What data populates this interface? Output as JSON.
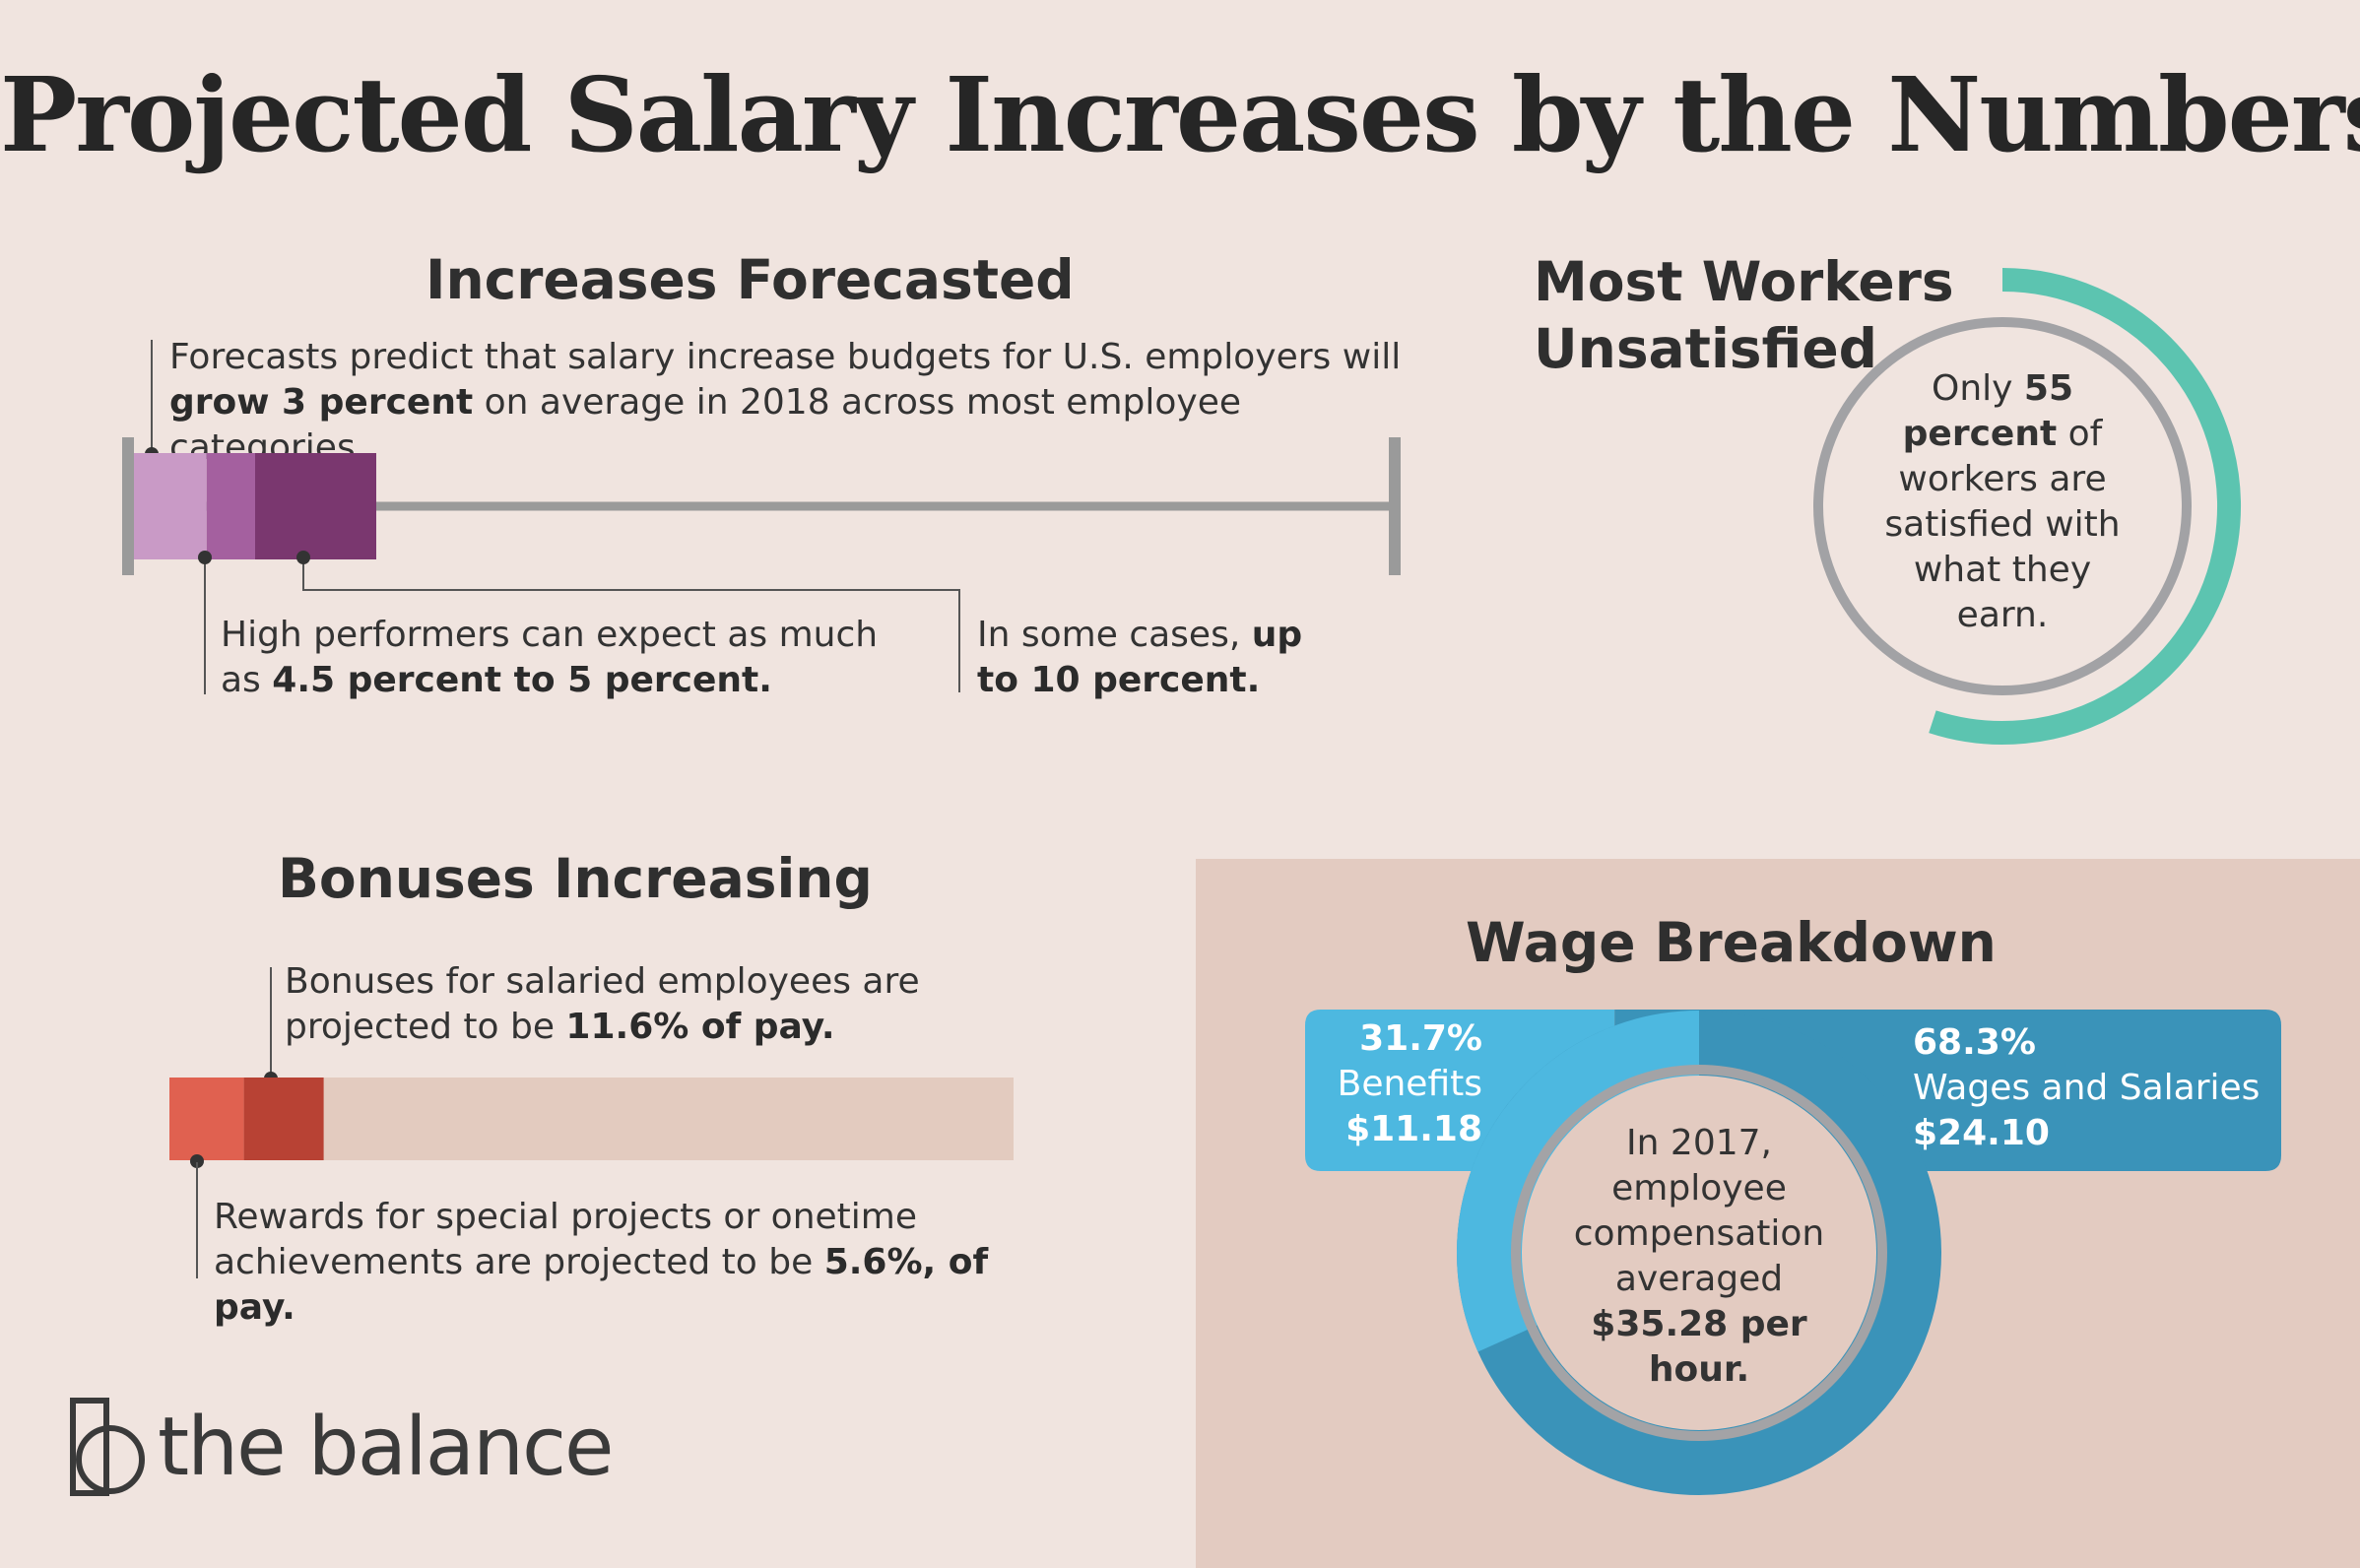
{
  "title": "Projected Salary Increases by the Numbers",
  "increases": {
    "heading": "Increases Forecasted",
    "intro_pre": "Forecasts predict that salary increase budgets for U.S. employers will ",
    "intro_bold": "grow 3 percent",
    "intro_post": " on average in 2018 across most employee categories.",
    "high_pre": "High performers can expect as much as ",
    "high_bold": "4.5 percent to 5 percent.",
    "cases_pre": "In some cases, ",
    "cases_bold": "up to 10 percent."
  },
  "satisfaction": {
    "heading_line1": "Most Workers",
    "heading_line2": "Unsatisfied",
    "text_pre": "Only ",
    "text_bold": "55 percent",
    "text_post": " of workers are satisfied with what they earn."
  },
  "bonuses": {
    "heading": "Bonuses Increasing",
    "salaried_pre": "Bonuses for salaried employees are projected to be ",
    "salaried_bold": "11.6% of pay.",
    "rewards_pre": "Rewards for special projects or onetime achievements are projected to be ",
    "rewards_bold": "5.6%, of pay."
  },
  "wage": {
    "heading": "Wage Breakdown",
    "center_pre": "In 2017, employee compensation averaged ",
    "center_bold": "$35.28 per hour.",
    "benefits": {
      "pct": "31.7%",
      "label": "Benefits",
      "amount": "$11.18"
    },
    "wages": {
      "pct": "68.3%",
      "label": "Wages and Salaries",
      "amount": "$24.10"
    }
  },
  "logo": {
    "text": "the balance"
  },
  "chart_data": [
    {
      "type": "bar",
      "title": "Increases Forecasted",
      "scale_max": 10,
      "segments": [
        {
          "name": "grow 3 percent",
          "value": 3,
          "color": "#c99ac6"
        },
        {
          "name": "4.5 percent to 5 percent",
          "value": 5,
          "color": "#a4609f"
        },
        {
          "name": "up to 10 percent",
          "value": 10,
          "color": "#7a376f"
        }
      ]
    },
    {
      "type": "pie",
      "title": "Most Workers Unsatisfied",
      "values": [
        55
      ],
      "color": "#5cc4b0"
    },
    {
      "type": "bar",
      "title": "Bonuses Increasing",
      "segments": [
        {
          "name": "Rewards for special projects",
          "value": 5.6,
          "color": "#e06150"
        },
        {
          "name": "Bonuses for salaried employees",
          "value": 11.6,
          "color": "#b84234"
        }
      ],
      "track_color": "#e3cbbf"
    },
    {
      "type": "pie",
      "title": "Wage Breakdown",
      "categories": [
        "Benefits",
        "Wages and Salaries"
      ],
      "values": [
        31.7,
        68.3
      ],
      "amounts": [
        "$11.18",
        "$24.10"
      ],
      "colors": [
        "#4db8e0",
        "#3a93b9"
      ]
    }
  ]
}
